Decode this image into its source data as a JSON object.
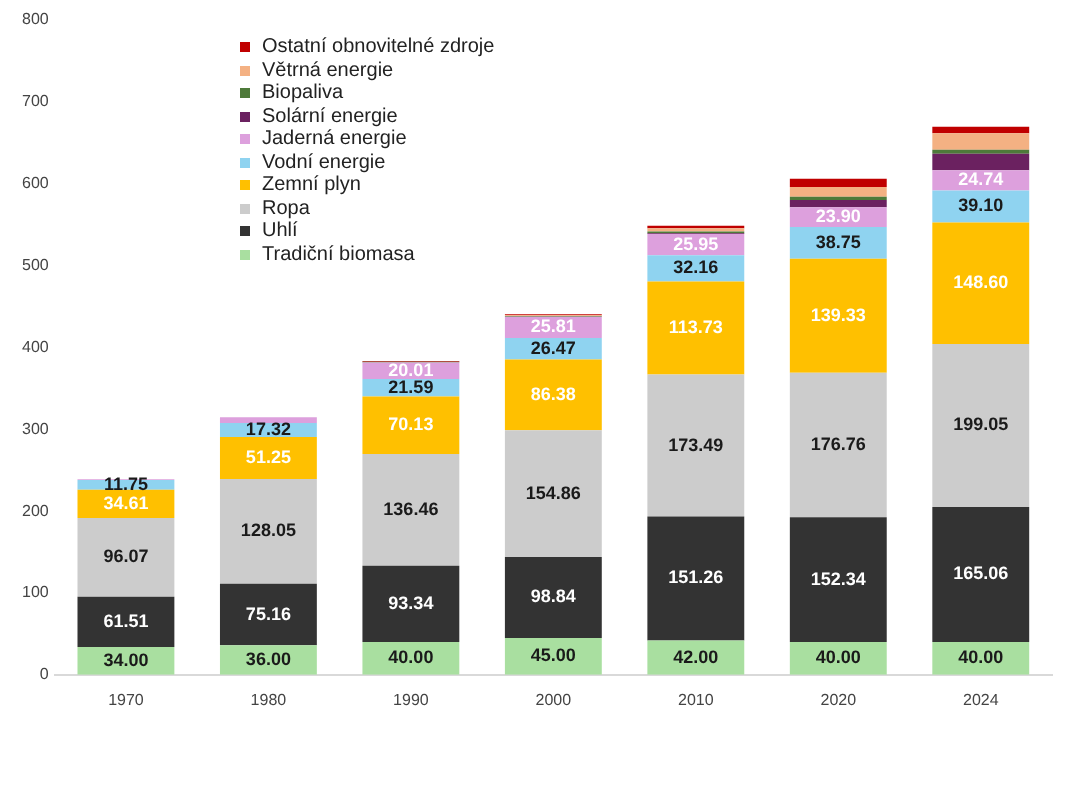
{
  "chart_data": {
    "type": "bar",
    "stacked": true,
    "categories": [
      "1970",
      "1980",
      "1990",
      "2000",
      "2010",
      "2020",
      "2024"
    ],
    "ylim": [
      0,
      800
    ],
    "yticks": [
      0,
      100,
      200,
      300,
      400,
      500,
      600,
      700,
      800
    ],
    "grid": false,
    "legend": "top left",
    "series": [
      {
        "name": "Tradiční biomasa",
        "color": "#a9dfa0",
        "values": [
          34.0,
          36.0,
          40.0,
          45.0,
          42.0,
          40.0,
          40.0
        ],
        "value_labels": [
          "34.00",
          "36.00",
          "40.00",
          "45.00",
          "42.00",
          "40.00",
          "40.00"
        ]
      },
      {
        "name": "Uhlí",
        "color": "#333333",
        "values": [
          61.51,
          75.16,
          93.34,
          98.84,
          151.26,
          152.34,
          165.06
        ],
        "value_labels": [
          "61.51",
          "75.16",
          "93.34",
          "98.84",
          "151.26",
          "152.34",
          "165.06"
        ]
      },
      {
        "name": "Ropa",
        "color": "#cccccc",
        "values": [
          96.07,
          128.05,
          136.46,
          154.86,
          173.49,
          176.76,
          199.05
        ],
        "value_labels": [
          "96.07",
          "128.05",
          "136.46",
          "154.86",
          "173.49",
          "176.76",
          "199.05"
        ]
      },
      {
        "name": "Zemní plyn",
        "color": "#ffc000",
        "values": [
          34.61,
          51.25,
          70.13,
          86.38,
          113.73,
          139.33,
          148.6
        ],
        "value_labels": [
          "34.61",
          "51.25",
          "70.13",
          "86.38",
          "113.73",
          "139.33",
          "148.60"
        ]
      },
      {
        "name": "Vodní energie",
        "color": "#8fd3f0",
        "values": [
          11.75,
          17.32,
          21.59,
          26.47,
          32.16,
          38.75,
          39.1
        ],
        "value_labels": [
          "11.75",
          "17.32",
          "21.59",
          "26.47",
          "32.16",
          "38.75",
          "39.10"
        ]
      },
      {
        "name": "Jaderná energie",
        "color": "#dda0dd",
        "values": [
          1,
          7,
          20.01,
          25.81,
          25.95,
          23.9,
          24.74
        ],
        "value_labels": [
          null,
          null,
          "20.01",
          "25.81",
          "25.95",
          "23.90",
          "24.74"
        ]
      },
      {
        "name": "Solární energie",
        "color": "#6b2160",
        "values": [
          0,
          0,
          0,
          0,
          1,
          9,
          20
        ]
      },
      {
        "name": "Biopaliva",
        "color": "#4e7a3a",
        "values": [
          0,
          0,
          1,
          1,
          2,
          4,
          5
        ]
      },
      {
        "name": "Větrná energie",
        "color": "#f4b183",
        "values": [
          0,
          0,
          0,
          1,
          4,
          12,
          20
        ]
      },
      {
        "name": "Ostatní obnovitelné zdroje",
        "color": "#c00000",
        "values": [
          0,
          0,
          1,
          1,
          3,
          10,
          8
        ]
      }
    ]
  }
}
